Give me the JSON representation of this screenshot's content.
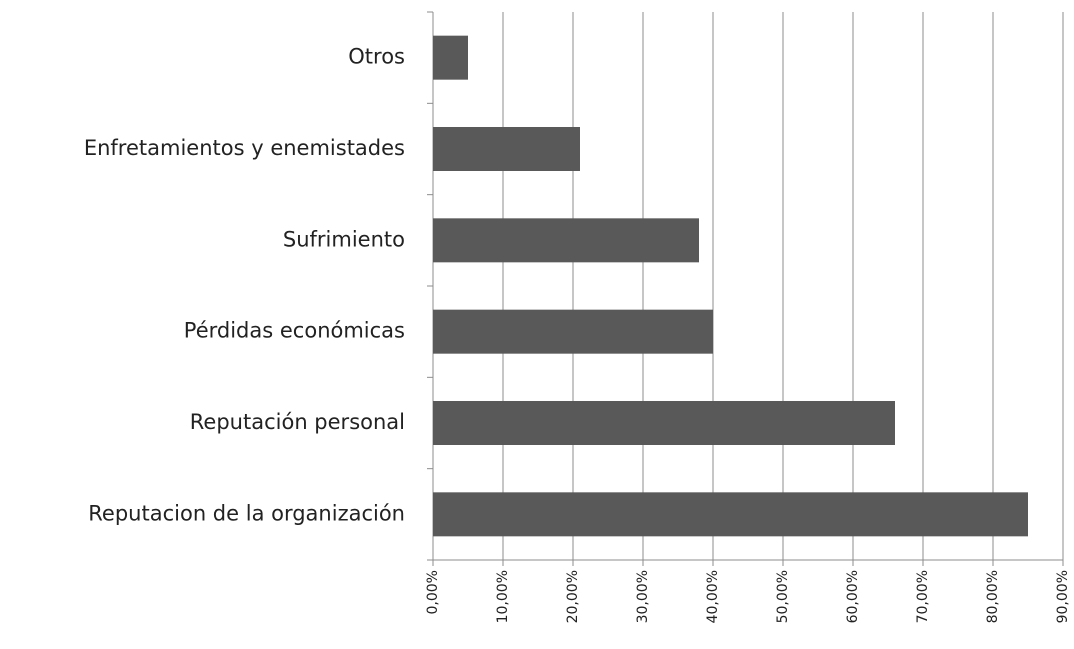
{
  "chart_data": {
    "type": "barh",
    "categories": [
      "Otros",
      "Enfretamientos y enemistades",
      "Sufrimiento",
      "Pérdidas económicas",
      "Reputación personal",
      "Reputacion de la organización"
    ],
    "values": [
      5,
      21,
      38,
      40,
      66,
      85
    ],
    "color": "#595959",
    "xlim": [
      0,
      90
    ],
    "xticks": [
      {
        "value": 0,
        "label": "0,00%"
      },
      {
        "value": 10,
        "label": "10,00%"
      },
      {
        "value": 20,
        "label": "20,00%"
      },
      {
        "value": 30,
        "label": "30,00%"
      },
      {
        "value": 40,
        "label": "40,00%"
      },
      {
        "value": 50,
        "label": "50,00%"
      },
      {
        "value": 60,
        "label": "60,00%"
      },
      {
        "value": 70,
        "label": "70,00%"
      },
      {
        "value": 80,
        "label": "80,00%"
      },
      {
        "value": 90,
        "label": "90,00%"
      }
    ],
    "grid": true
  }
}
